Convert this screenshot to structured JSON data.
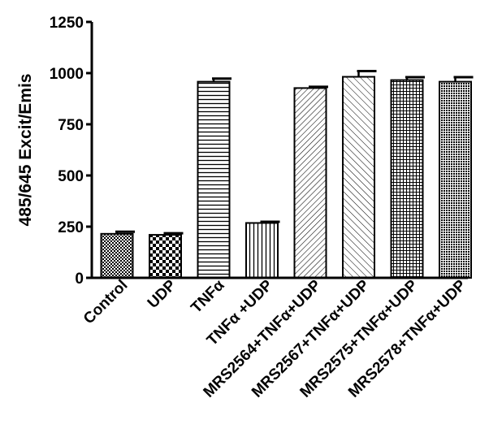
{
  "chart_data": {
    "type": "bar",
    "title": "",
    "xlabel": "",
    "ylabel": "485/645 Excit/Emis",
    "ylim": [
      0,
      1250
    ],
    "yticks": [
      0,
      250,
      500,
      750,
      1000,
      1250
    ],
    "ytick_labels": [
      "0",
      "250",
      "500",
      "750",
      "1000",
      "1250"
    ],
    "grid": false,
    "legend": "none",
    "categories": [
      "Control",
      "UDP",
      "TNFα",
      "TNFα +UDP",
      "MRS2564+TNFα+UDP",
      "MRS2567+TNFα+UDP",
      "MRS2575+TNFα+UDP",
      "MRS2578+TNFα+UDP"
    ],
    "values": [
      215,
      210,
      958,
      268,
      927,
      982,
      966,
      958
    ],
    "errors": [
      10,
      8,
      15,
      6,
      6,
      28,
      14,
      22
    ],
    "patterns": [
      "checker-fine",
      "checker-coarse",
      "horizontal-lines",
      "vertical-lines",
      "diagonal-back",
      "diagonal-forward",
      "grid-fine",
      "dots-dense"
    ],
    "colors": {
      "bar_stroke": "#000000",
      "bar_fill": "#ffffff",
      "pattern_ink": "#000000"
    }
  }
}
